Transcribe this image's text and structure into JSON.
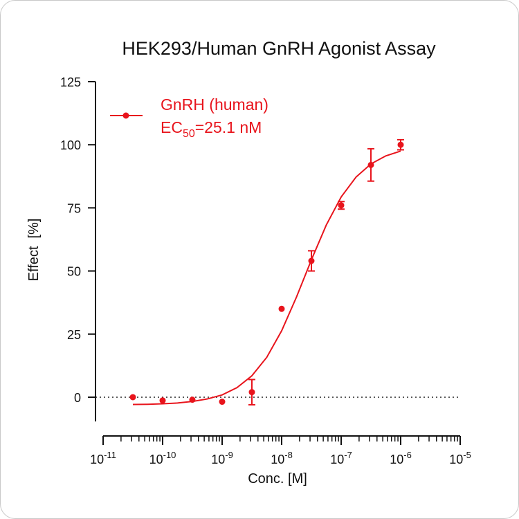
{
  "chart_data": {
    "type": "scatter",
    "title": "HEK293/Human GnRH Agonist Assay",
    "xlabel": "Conc. [M]",
    "ylabel": "Effect  [%]",
    "xscale": "log",
    "xlim": [
      1e-11,
      1e-05
    ],
    "xticks": [
      {
        "value": 1e-11,
        "label": "10",
        "exponent": "-11"
      },
      {
        "value": 1e-10,
        "label": "10",
        "exponent": "-10"
      },
      {
        "value": 1e-09,
        "label": "10",
        "exponent": "-9"
      },
      {
        "value": 1e-08,
        "label": "10",
        "exponent": "-8"
      },
      {
        "value": 1e-07,
        "label": "10",
        "exponent": "-7"
      },
      {
        "value": 1e-06,
        "label": "10",
        "exponent": "-6"
      },
      {
        "value": 1e-05,
        "label": "10",
        "exponent": "-5"
      }
    ],
    "xminor_ticks": [
      2e-11,
      3e-11,
      4e-11,
      5e-11,
      6e-11,
      7e-11,
      8e-11,
      9e-11,
      2e-10,
      3e-10,
      4e-10,
      5e-10,
      6e-10,
      7e-10,
      8e-10,
      9e-10,
      2e-09,
      3e-09,
      4e-09,
      5e-09,
      6e-09,
      7e-09,
      8e-09,
      9e-09,
      2e-08,
      3e-08,
      4e-08,
      5e-08,
      6e-08,
      7e-08,
      8e-08,
      9e-08,
      2e-07,
      3e-07,
      4e-07,
      5e-07,
      6e-07,
      7e-07,
      8e-07,
      9e-07,
      2e-06,
      3e-06,
      4e-06,
      5e-06,
      6e-06,
      7e-06,
      8e-06,
      9e-06
    ],
    "ylim": [
      -9.6,
      125
    ],
    "yticks": [
      0,
      25,
      50,
      75,
      100,
      125
    ],
    "hline": 0,
    "series": [
      {
        "name": "GnRH (human)",
        "color": "#e8141c",
        "x": [
          3.162e-11,
          1e-10,
          3.162e-10,
          1e-09,
          3.162e-09,
          1e-08,
          3.162e-08,
          1e-07,
          3.162e-07,
          1e-06
        ],
        "values": [
          0,
          -1.3,
          -1,
          -1.8,
          2,
          35,
          54,
          76,
          92,
          100
        ],
        "errors": [
          null,
          null,
          null,
          null,
          5,
          null,
          4,
          1.5,
          6.4,
          2
        ]
      }
    ],
    "fit": {
      "color": "#e8141c",
      "x": [
        3.162e-11,
        5.623e-11,
        1e-10,
        1.778e-10,
        3.162e-10,
        5.623e-10,
        1e-09,
        1.778e-09,
        3.162e-09,
        5.623e-09,
        1e-08,
        1.778e-08,
        3.162e-08,
        5.623e-08,
        1e-07,
        1.778e-07,
        3.162e-07,
        5.623e-07,
        1e-06
      ],
      "values": [
        -2.9,
        -2.8,
        -2.6,
        -2.3,
        -1.7,
        -0.7,
        0.9,
        3.8,
        8.5,
        15.8,
        26.3,
        39.7,
        54.4,
        68.2,
        79.3,
        87.2,
        92.4,
        95.6,
        97.5
      ]
    },
    "annotation": {
      "prefix": "EC",
      "subscript": "50",
      "suffix": "=25.1 nM"
    }
  }
}
